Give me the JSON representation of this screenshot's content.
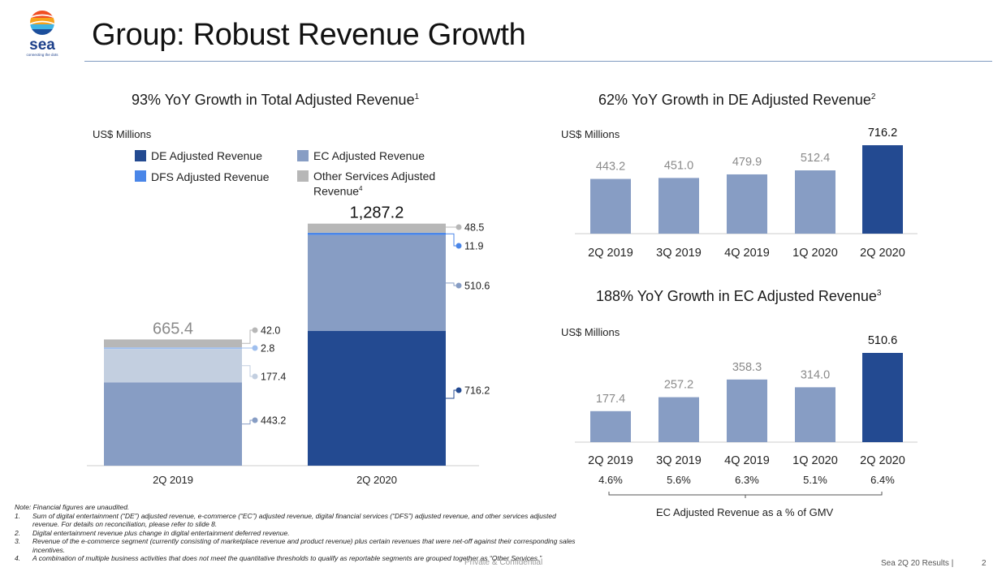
{
  "header": {
    "logo_text": "sea",
    "logo_tagline": "connecting the dots",
    "title": "Group: Robust Revenue Growth"
  },
  "colors": {
    "de": "#234a91",
    "ec": "#879dc4",
    "ec_light": "#c3cfe0",
    "dfs": "#4a86e8",
    "dfs_light": "#9fbfee",
    "other": "#b7b7b7",
    "rule": "#7e9ac0"
  },
  "left_panel": {
    "title": "93% YoY Growth in Total Adjusted Revenue",
    "title_sup": "1",
    "units": "US$ Millions",
    "legend": [
      {
        "label": "DE Adjusted Revenue",
        "sup": "",
        "color": "#234a91"
      },
      {
        "label": "EC Adjusted Revenue",
        "sup": "",
        "color": "#879dc4"
      },
      {
        "label": "DFS Adjusted Revenue",
        "sup": "",
        "color": "#4a86e8"
      },
      {
        "label": "Other Services Adjusted Revenue",
        "sup": "4",
        "color": "#b7b7b7"
      }
    ]
  },
  "de_panel": {
    "title": "62% YoY Growth in DE Adjusted Revenue",
    "title_sup": "2",
    "units": "US$ Millions"
  },
  "ec_panel": {
    "title": "188% YoY Growth in EC Adjusted Revenue",
    "title_sup": "3",
    "units": "US$ Millions",
    "gmv_caption": "EC Adjusted Revenue as a % of GMV"
  },
  "chart_data": [
    {
      "type": "bar",
      "stacked": true,
      "title": "93% YoY Growth in Total Adjusted Revenue",
      "ylabel": "US$ Millions",
      "categories": [
        "2Q 2019",
        "2Q 2020"
      ],
      "totals": [
        665.4,
        1287.2
      ],
      "total_labels": [
        "665.4",
        "1,287.2"
      ],
      "series": [
        {
          "name": "DE Adjusted Revenue",
          "values": [
            443.2,
            716.2
          ],
          "labels": [
            "443.2",
            "716.2"
          ]
        },
        {
          "name": "EC Adjusted Revenue",
          "values": [
            177.4,
            510.6
          ],
          "labels": [
            "177.4",
            "510.6"
          ]
        },
        {
          "name": "DFS Adjusted Revenue",
          "values": [
            2.8,
            11.9
          ],
          "labels": [
            "2.8",
            "11.9"
          ]
        },
        {
          "name": "Other Services Adjusted Revenue",
          "values": [
            42.0,
            48.5
          ],
          "labels": [
            "42.0",
            "48.5"
          ]
        }
      ],
      "legend": "top"
    },
    {
      "type": "bar",
      "title": "62% YoY Growth in DE Adjusted Revenue",
      "ylabel": "US$ Millions",
      "categories": [
        "2Q 2019",
        "3Q 2019",
        "4Q 2019",
        "1Q 2020",
        "2Q 2020"
      ],
      "values": [
        443.2,
        451.0,
        479.9,
        512.4,
        716.2
      ],
      "labels": [
        "443.2",
        "451.0",
        "479.9",
        "512.4",
        "716.2"
      ],
      "highlight_last": true
    },
    {
      "type": "bar",
      "title": "188% YoY Growth in EC Adjusted Revenue",
      "ylabel": "US$ Millions",
      "categories": [
        "2Q 2019",
        "3Q 2019",
        "4Q 2019",
        "1Q 2020",
        "2Q 2020"
      ],
      "values": [
        177.4,
        257.2,
        358.3,
        314.0,
        510.6
      ],
      "labels": [
        "177.4",
        "257.2",
        "358.3",
        "314.0",
        "510.6"
      ],
      "pct_of_gmv": [
        "4.6%",
        "5.6%",
        "6.3%",
        "5.1%",
        "6.4%"
      ],
      "highlight_last": true
    }
  ],
  "footnotes": {
    "note": "Note: Financial figures are unaudited.",
    "items": [
      {
        "num": "1.",
        "text": "Sum of digital entertainment (“DE”) adjusted revenue, e-commerce (“EC”) adjusted revenue, digital financial services (“DFS”) adjusted revenue, and other services adjusted revenue. For details on reconciliation, please refer to slide 8."
      },
      {
        "num": "2.",
        "text": "Digital entertainment revenue plus change in digital entertainment deferred revenue."
      },
      {
        "num": "3.",
        "text": "Revenue of the e-commerce segment (currently consisting of marketplace revenue and product revenue) plus certain revenues that were net-off against their corresponding sales incentives."
      },
      {
        "num": "4.",
        "text": "A combination of multiple business activities that does not meet the quantitative thresholds to qualify as reportable segments are grouped together as “Other Services.”"
      }
    ]
  },
  "footer": {
    "confidential": "Private & Confidential",
    "text": "Sea 2Q 20 Results |",
    "page": "2"
  }
}
